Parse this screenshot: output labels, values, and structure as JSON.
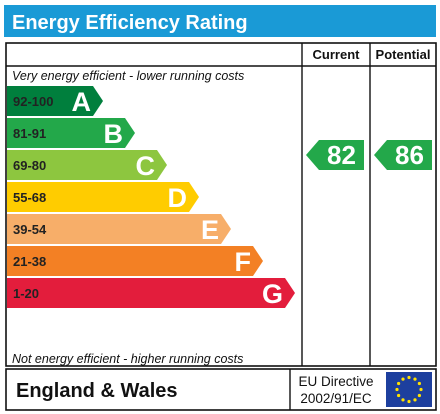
{
  "chart_data": {
    "type": "bar",
    "title": "Energy Efficiency Rating",
    "note_top": "Very energy efficient - lower running costs",
    "note_bottom": "Not energy efficient - higher running costs",
    "bands": [
      {
        "range": "92-100",
        "letter": "A",
        "color": "#007f3d"
      },
      {
        "range": "81-91",
        "letter": "B",
        "color": "#23a84a"
      },
      {
        "range": "69-80",
        "letter": "C",
        "color": "#8dc63f"
      },
      {
        "range": "55-68",
        "letter": "D",
        "color": "#ffcc00"
      },
      {
        "range": "39-54",
        "letter": "E",
        "color": "#f7ae69"
      },
      {
        "range": "21-38",
        "letter": "F",
        "color": "#f38024"
      },
      {
        "range": "1-20",
        "letter": "G",
        "color": "#e31d3c"
      }
    ],
    "columns": [
      "Current",
      "Potential"
    ],
    "ratings": [
      {
        "column": "Current",
        "value": 82,
        "band": "B",
        "color": "#23a84a"
      },
      {
        "column": "Potential",
        "value": 86,
        "band": "B",
        "color": "#23a84a"
      }
    ],
    "footer": {
      "region": "England & Wales",
      "directive_line1": "EU Directive",
      "directive_line2": "2002/91/EC"
    },
    "title_bar_color": "#1a9ad6"
  }
}
